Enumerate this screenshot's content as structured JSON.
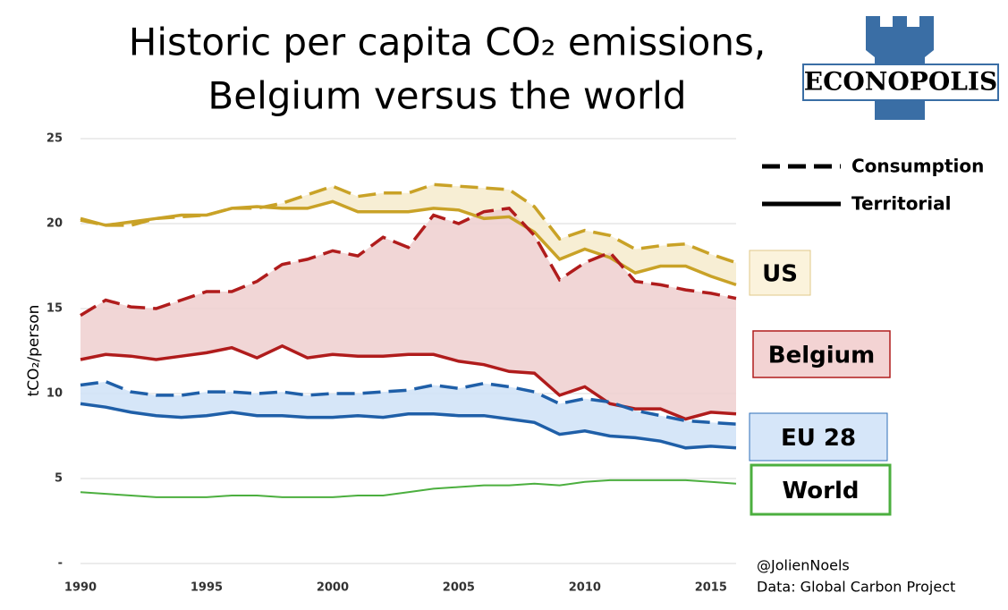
{
  "chart_data": {
    "type": "line",
    "title": [
      "Historic per capita CO₂ emissions,",
      "Belgium versus the world"
    ],
    "y_label": "tCO₂/person",
    "logo": "ECONOPOLIS",
    "annotations": [
      "@JolienNoels",
      "Data: Global Carbon Project"
    ],
    "legend": [
      {
        "label": "Consumption",
        "dashed": true
      },
      {
        "label": "Territorial",
        "dashed": false
      }
    ],
    "x": [
      1990,
      1991,
      1992,
      1993,
      1994,
      1995,
      1996,
      1997,
      1998,
      1999,
      2000,
      2001,
      2002,
      2003,
      2004,
      2005,
      2006,
      2007,
      2008,
      2009,
      2010,
      2011,
      2012,
      2013,
      2014,
      2015,
      2016
    ],
    "xlim": [
      1990,
      2016
    ],
    "xticks": [
      1990,
      1995,
      2000,
      2005,
      2010,
      2015
    ],
    "ylim": [
      0,
      25
    ],
    "yticks": [
      {
        "value": 0,
        "label": "-"
      },
      5,
      10,
      15,
      20,
      25
    ],
    "grid": true,
    "series": [
      {
        "name": "US",
        "color": "#c9a227",
        "band_color": "#f6ebcc",
        "box_fill": "#fbf3dc",
        "box_border": "#e0c98a",
        "consumption": [
          20.2,
          19.9,
          19.9,
          20.3,
          20.4,
          20.5,
          20.9,
          20.9,
          21.2,
          21.7,
          22.2,
          21.6,
          21.8,
          21.8,
          22.3,
          22.2,
          22.1,
          22.0,
          21.0,
          19.1,
          19.6,
          19.3,
          18.5,
          18.7,
          18.8,
          18.2,
          17.7
        ],
        "territorial": [
          20.3,
          19.9,
          20.1,
          20.3,
          20.5,
          20.5,
          20.9,
          21.0,
          20.9,
          20.9,
          21.3,
          20.7,
          20.7,
          20.7,
          20.9,
          20.8,
          20.3,
          20.4,
          19.5,
          17.9,
          18.5,
          18.0,
          17.1,
          17.5,
          17.5,
          16.9,
          16.4
        ]
      },
      {
        "name": "Belgium",
        "color": "#b01c1c",
        "band_color": "#efcfcf",
        "box_fill": "#f3d3d3",
        "box_border": "#b01c1c",
        "consumption": [
          14.6,
          15.5,
          15.1,
          15.0,
          15.5,
          16.0,
          16.0,
          16.6,
          17.6,
          17.9,
          18.4,
          18.1,
          19.2,
          18.6,
          20.5,
          20.0,
          20.7,
          20.9,
          19.3,
          16.7,
          17.7,
          18.3,
          16.6,
          16.4,
          16.1,
          15.9,
          15.6
        ],
        "territorial": [
          12.0,
          12.3,
          12.2,
          12.0,
          12.2,
          12.4,
          12.7,
          12.1,
          12.8,
          12.1,
          12.3,
          12.2,
          12.2,
          12.3,
          12.3,
          11.9,
          11.7,
          11.3,
          11.2,
          9.9,
          10.4,
          9.4,
          9.1,
          9.1,
          8.5,
          8.9,
          8.8
        ]
      },
      {
        "name": "EU 28",
        "color": "#1f5fa8",
        "band_color": "#cfe2f7",
        "box_fill": "#d6e6f9",
        "box_border": "#2f6fb8",
        "consumption": [
          10.5,
          10.7,
          10.1,
          9.9,
          9.9,
          10.1,
          10.1,
          10.0,
          10.1,
          9.9,
          10.0,
          10.0,
          10.1,
          10.2,
          10.5,
          10.3,
          10.6,
          10.4,
          10.1,
          9.4,
          9.7,
          9.5,
          9.0,
          8.7,
          8.4,
          8.3,
          8.2
        ],
        "territorial": [
          9.4,
          9.2,
          8.9,
          8.7,
          8.6,
          8.7,
          8.9,
          8.7,
          8.7,
          8.6,
          8.6,
          8.7,
          8.6,
          8.8,
          8.8,
          8.7,
          8.7,
          8.5,
          8.3,
          7.6,
          7.8,
          7.5,
          7.4,
          7.2,
          6.8,
          6.9,
          6.8
        ]
      },
      {
        "name": "World",
        "color": "#4caf3f",
        "box_fill": "#ffffff",
        "box_border": "#4caf3f",
        "territorial": [
          4.2,
          4.1,
          4.0,
          3.9,
          3.9,
          3.9,
          4.0,
          4.0,
          3.9,
          3.9,
          3.9,
          4.0,
          4.0,
          4.2,
          4.4,
          4.5,
          4.6,
          4.6,
          4.7,
          4.6,
          4.8,
          4.9,
          4.9,
          4.9,
          4.9,
          4.8,
          4.7
        ]
      }
    ]
  }
}
